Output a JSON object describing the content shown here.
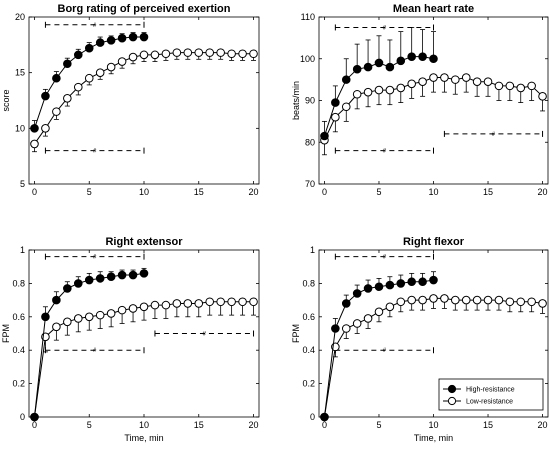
{
  "chart_data": [
    {
      "type": "line",
      "title": "Borg rating of perceived exertion",
      "xlabel": "",
      "ylabel": "score",
      "xlim": [
        -0.5,
        20.5
      ],
      "ylim": [
        5,
        20
      ],
      "xticks": [
        0,
        5,
        10,
        15,
        20
      ],
      "yticks": [
        5,
        10,
        15,
        20
      ],
      "xtick_labels": [
        "0",
        "5",
        "10",
        "15",
        "20"
      ],
      "ytick_labels": [
        "5",
        "10",
        "15",
        "20"
      ],
      "series": [
        {
          "name": "High-resistance",
          "marker": "filled",
          "x": [
            0,
            1,
            2,
            3,
            4,
            5,
            6,
            7,
            8,
            9,
            10
          ],
          "y": [
            10.0,
            12.9,
            14.5,
            15.8,
            16.6,
            17.2,
            17.7,
            17.9,
            18.1,
            18.2,
            18.2
          ],
          "err": [
            0.7,
            0.6,
            0.6,
            0.5,
            0.5,
            0.5,
            0.5,
            0.4,
            0.4,
            0.4,
            0.4
          ]
        },
        {
          "name": "Low-resistance",
          "marker": "open",
          "x": [
            0,
            1,
            2,
            3,
            4,
            5,
            6,
            7,
            8,
            9,
            10,
            11,
            12,
            13,
            14,
            15,
            16,
            17,
            18,
            19,
            20
          ],
          "y": [
            8.6,
            10.0,
            11.5,
            12.7,
            13.7,
            14.5,
            15.0,
            15.5,
            16.0,
            16.4,
            16.6,
            16.6,
            16.7,
            16.8,
            16.8,
            16.8,
            16.8,
            16.8,
            16.7,
            16.7,
            16.7
          ],
          "err": [
            0.7,
            0.7,
            0.7,
            0.7,
            0.7,
            0.6,
            0.6,
            0.6,
            0.6,
            0.6,
            0.6,
            0.6,
            0.6,
            0.6,
            0.6,
            0.6,
            0.6,
            0.6,
            0.6,
            0.6,
            0.6
          ]
        }
      ],
      "annotations": [
        {
          "text": "#",
          "x0": 1,
          "x1": 10,
          "y": 19.3
        },
        {
          "text": "#",
          "x0": 1,
          "x1": 10,
          "y": 8.0
        }
      ]
    },
    {
      "type": "line",
      "title": "Mean heart rate",
      "xlabel": "",
      "ylabel": "beats/min",
      "xlim": [
        -0.5,
        20.5
      ],
      "ylim": [
        70,
        110
      ],
      "xticks": [
        0,
        5,
        10,
        15,
        20
      ],
      "yticks": [
        70,
        80,
        90,
        100,
        110
      ],
      "xtick_labels": [
        "0",
        "5",
        "10",
        "15",
        "20"
      ],
      "ytick_labels": [
        "70",
        "80",
        "90",
        "100",
        "110"
      ],
      "series": [
        {
          "name": "High-resistance",
          "marker": "filled",
          "x": [
            0,
            1,
            2,
            3,
            4,
            5,
            6,
            7,
            8,
            9,
            10
          ],
          "y": [
            81.5,
            89.5,
            95.0,
            97.5,
            98.0,
            99.0,
            98.0,
            99.5,
            100.5,
            100.5,
            100.0
          ],
          "err": [
            3.5,
            4.0,
            5.0,
            6.0,
            6.5,
            6.5,
            6.5,
            7.0,
            7.0,
            6.5,
            6.5
          ]
        },
        {
          "name": "Low-resistance",
          "marker": "open",
          "x": [
            0,
            1,
            2,
            3,
            4,
            5,
            6,
            7,
            8,
            9,
            10,
            11,
            12,
            13,
            14,
            15,
            16,
            17,
            18,
            19,
            20
          ],
          "y": [
            80.5,
            86.0,
            88.5,
            91.5,
            92.0,
            92.5,
            92.5,
            93.0,
            94.0,
            94.5,
            95.5,
            95.5,
            95.0,
            95.5,
            94.5,
            94.5,
            93.5,
            93.5,
            93.0,
            93.5,
            91.0
          ],
          "err": [
            3.5,
            3.5,
            3.5,
            3.5,
            3.5,
            3.5,
            3.5,
            3.5,
            3.5,
            3.5,
            3.5,
            3.5,
            3.5,
            3.5,
            3.5,
            3.5,
            3.5,
            3.5,
            3.5,
            3.5,
            3.5
          ]
        }
      ],
      "annotations": [
        {
          "text": "#",
          "x0": 1,
          "x1": 10,
          "y": 107.5
        },
        {
          "text": "#",
          "x0": 1,
          "x1": 10,
          "y": 78.0
        },
        {
          "text": "#",
          "x0": 11,
          "x1": 20,
          "y": 82.0
        }
      ]
    },
    {
      "type": "line",
      "title": "Right extensor",
      "xlabel": "Time, min",
      "ylabel": "FPM",
      "xlim": [
        -0.5,
        20.5
      ],
      "ylim": [
        0,
        1.0
      ],
      "xticks": [
        0,
        5,
        10,
        15,
        20
      ],
      "yticks": [
        0,
        0.2,
        0.4,
        0.6,
        0.8,
        1.0
      ],
      "xtick_labels": [
        "0",
        "5",
        "10",
        "15",
        "20"
      ],
      "ytick_labels": [
        "0",
        "0.2",
        "0.4",
        "0.6",
        "0.8",
        "1"
      ],
      "series": [
        {
          "name": "High-resistance",
          "marker": "filled",
          "x": [
            0,
            1,
            2,
            3,
            4,
            5,
            6,
            7,
            8,
            9,
            10
          ],
          "y": [
            0.0,
            0.6,
            0.7,
            0.77,
            0.8,
            0.82,
            0.83,
            0.84,
            0.85,
            0.85,
            0.86
          ],
          "err": [
            0.0,
            0.06,
            0.05,
            0.04,
            0.04,
            0.04,
            0.04,
            0.03,
            0.03,
            0.03,
            0.03
          ]
        },
        {
          "name": "Low-resistance",
          "marker": "open",
          "x": [
            0,
            1,
            2,
            3,
            4,
            5,
            6,
            7,
            8,
            9,
            10,
            11,
            12,
            13,
            14,
            15,
            16,
            17,
            18,
            19,
            20
          ],
          "y": [
            0.0,
            0.48,
            0.54,
            0.57,
            0.59,
            0.6,
            0.61,
            0.62,
            0.64,
            0.65,
            0.66,
            0.67,
            0.67,
            0.68,
            0.68,
            0.68,
            0.69,
            0.69,
            0.69,
            0.69,
            0.69
          ],
          "err": [
            0.0,
            0.09,
            0.08,
            0.08,
            0.08,
            0.08,
            0.08,
            0.08,
            0.08,
            0.08,
            0.08,
            0.08,
            0.08,
            0.08,
            0.08,
            0.08,
            0.08,
            0.08,
            0.08,
            0.08,
            0.08
          ]
        }
      ],
      "annotations": [
        {
          "text": "#",
          "x0": 1,
          "x1": 10,
          "y": 0.96
        },
        {
          "text": "#",
          "x0": 1,
          "x1": 10,
          "y": 0.4
        },
        {
          "text": "#",
          "x0": 11,
          "x1": 20,
          "y": 0.5
        }
      ]
    },
    {
      "type": "line",
      "title": "Right flexor",
      "xlabel": "Time, min",
      "ylabel": "FPM",
      "xlim": [
        -0.5,
        20.5
      ],
      "ylim": [
        0,
        1.0
      ],
      "xticks": [
        0,
        5,
        10,
        15,
        20
      ],
      "yticks": [
        0,
        0.2,
        0.4,
        0.6,
        0.8,
        1.0
      ],
      "xtick_labels": [
        "0",
        "5",
        "10",
        "15",
        "20"
      ],
      "ytick_labels": [
        "0",
        "0.2",
        "0.4",
        "0.6",
        "0.8",
        "1"
      ],
      "series": [
        {
          "name": "High-resistance",
          "marker": "filled",
          "x": [
            0,
            1,
            2,
            3,
            4,
            5,
            6,
            7,
            8,
            9,
            10
          ],
          "y": [
            0.0,
            0.53,
            0.68,
            0.74,
            0.77,
            0.78,
            0.79,
            0.8,
            0.81,
            0.81,
            0.82
          ],
          "err": [
            0.0,
            0.06,
            0.05,
            0.05,
            0.05,
            0.05,
            0.05,
            0.05,
            0.05,
            0.05,
            0.05
          ]
        },
        {
          "name": "Low-resistance",
          "marker": "open",
          "x": [
            0,
            1,
            2,
            3,
            4,
            5,
            6,
            7,
            8,
            9,
            10,
            11,
            12,
            13,
            14,
            15,
            16,
            17,
            18,
            19,
            20
          ],
          "y": [
            0.0,
            0.42,
            0.53,
            0.56,
            0.59,
            0.63,
            0.66,
            0.69,
            0.7,
            0.7,
            0.71,
            0.71,
            0.7,
            0.7,
            0.7,
            0.7,
            0.7,
            0.69,
            0.69,
            0.69,
            0.68
          ],
          "err": [
            0.0,
            0.06,
            0.06,
            0.06,
            0.06,
            0.06,
            0.06,
            0.06,
            0.06,
            0.06,
            0.06,
            0.06,
            0.06,
            0.06,
            0.06,
            0.06,
            0.06,
            0.06,
            0.06,
            0.06,
            0.06
          ]
        }
      ],
      "annotations": [
        {
          "text": "#",
          "x0": 1,
          "x1": 10,
          "y": 0.96
        },
        {
          "text": "#",
          "x0": 1,
          "x1": 10,
          "y": 0.4
        }
      ],
      "legend": {
        "placement": "bottom-right",
        "entries": [
          {
            "label": "High-resistance",
            "marker": "filled"
          },
          {
            "label": "Low-resistance",
            "marker": "open"
          }
        ]
      }
    }
  ]
}
